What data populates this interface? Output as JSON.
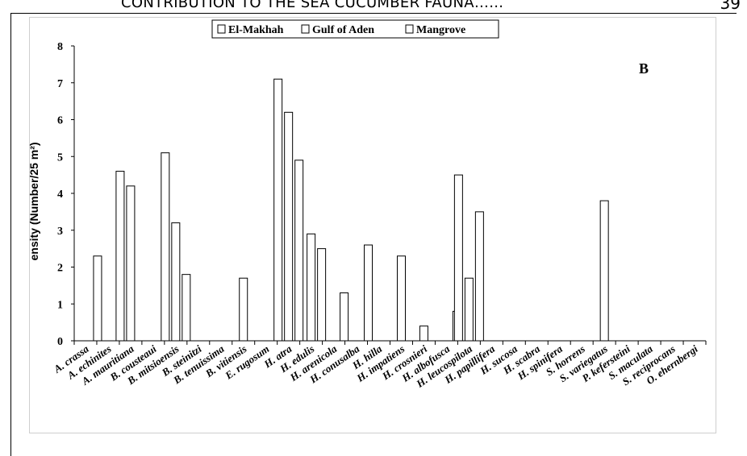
{
  "page": {
    "running_head": "CONTRIBUTION TO THE SEA CUCUMBER FAUNA……",
    "page_number": "39"
  },
  "chart_data": {
    "type": "bar",
    "panel_label": "B",
    "ylabel": "ensity (Number/25 m²)",
    "ylim": [
      0,
      8
    ],
    "yticks": [
      0,
      1,
      2,
      3,
      4,
      5,
      6,
      7,
      8
    ],
    "legend_position": "top-center",
    "categories": [
      "A. crassa",
      "A. echinites",
      "A. mauritiana",
      "B. cousteaui",
      "B. mitsioensis",
      "B. steinitzi",
      "B. tenuissima",
      "B. vitiensis",
      "E. rugosum",
      "H. atra",
      "H. edulis",
      "H. arenicola",
      "H. conusalba",
      "H. hilla",
      "H. impatiens",
      "H. crosnieri",
      "H. albofusca",
      "H. leucospilota",
      "H. papillifera",
      "H. sucosa",
      "H. scabra",
      "H. spinifera",
      "S. horrens",
      "S. variegatus",
      "P. kefersteini",
      "S. maculata",
      "S. reciprocans",
      "O. ehernbergi"
    ],
    "series": [
      {
        "name": "El-Makhah",
        "values": [
          0,
          2.3,
          4.6,
          0,
          5.1,
          0,
          0,
          0,
          0,
          7.1,
          0,
          0,
          0,
          2.6,
          0,
          0,
          0,
          4.5,
          0,
          0,
          0,
          0,
          0,
          0,
          0,
          0,
          0,
          0
        ]
      },
      {
        "name": "Gulf of Aden",
        "values": [
          0,
          0,
          4.2,
          0,
          3.2,
          0,
          0,
          1.7,
          0,
          6.2,
          2.9,
          0,
          0,
          0,
          2.3,
          0.4,
          0,
          1.7,
          0,
          0,
          0,
          0,
          0,
          3.8,
          0,
          0,
          0,
          0
        ]
      },
      {
        "name": "Mangrove",
        "values": [
          0,
          0,
          0,
          0,
          1.8,
          0,
          0,
          0,
          0,
          4.9,
          2.5,
          1.3,
          0,
          0,
          0,
          0,
          0.8,
          3.5,
          0,
          0,
          0,
          0,
          0,
          0,
          0,
          0,
          0,
          0
        ]
      }
    ],
    "colors": {
      "bar_fill": "#ffffff",
      "bar_stroke": "#000000",
      "axis": "#000000"
    }
  }
}
